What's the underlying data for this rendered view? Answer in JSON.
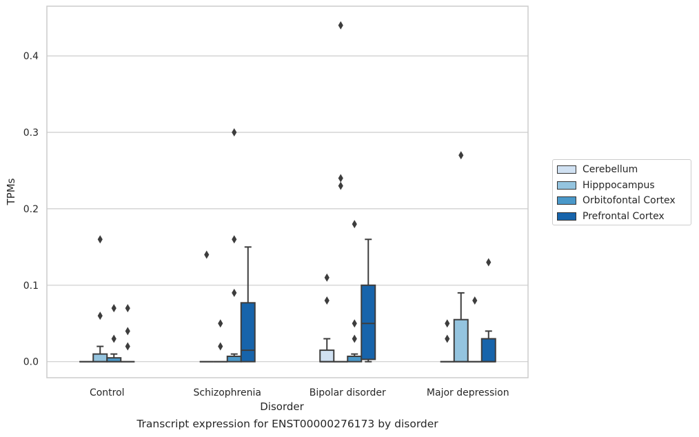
{
  "chart_data": {
    "type": "box",
    "xlabel": "Disorder",
    "ylabel": "TPMs",
    "ylim": [
      -0.021,
      0.465
    ],
    "yticks": [
      0.0,
      0.1,
      0.2,
      0.3,
      0.4
    ],
    "ytick_labels": [
      "0.0",
      "0.1",
      "0.2",
      "0.3",
      "0.4"
    ],
    "grid": "horizontal",
    "legend_position": "right-outside",
    "categories": [
      "Control",
      "Schizophrenia",
      "Bipolar disorder",
      "Major depression"
    ],
    "series": [
      {
        "name": "Cerebellum",
        "color": "#d0e1f2",
        "boxes": [
          {
            "min": 0,
            "q1": 0,
            "median": 0,
            "q3": 0,
            "max": 0,
            "outliers": []
          },
          {
            "min": 0,
            "q1": 0,
            "median": 0,
            "q3": 0,
            "max": 0,
            "outliers": [
              0.14
            ]
          },
          {
            "min": 0,
            "q1": 0,
            "median": 0,
            "q3": 0.015,
            "max": 0.03,
            "outliers": [
              0.08,
              0.11
            ]
          },
          {
            "min": 0,
            "q1": 0,
            "median": 0,
            "q3": 0,
            "max": 0,
            "outliers": [
              0.03,
              0.05
            ]
          }
        ]
      },
      {
        "name": "Hipppocampus",
        "color": "#94c4df",
        "boxes": [
          {
            "min": 0,
            "q1": 0,
            "median": 0,
            "q3": 0.01,
            "max": 0.02,
            "outliers": [
              0.06,
              0.16
            ]
          },
          {
            "min": 0,
            "q1": 0,
            "median": 0,
            "q3": 0,
            "max": 0,
            "outliers": [
              0.02,
              0.05
            ]
          },
          {
            "min": 0,
            "q1": 0,
            "median": 0,
            "q3": 0,
            "max": 0,
            "outliers": [
              0.23,
              0.24,
              0.44
            ]
          },
          {
            "min": 0,
            "q1": 0,
            "median": 0,
            "q3": 0.055,
            "max": 0.09,
            "outliers": [
              0.27
            ]
          }
        ]
      },
      {
        "name": "Orbitofontal Cortex",
        "color": "#4a98c9",
        "boxes": [
          {
            "min": 0,
            "q1": 0,
            "median": 0,
            "q3": 0.005,
            "max": 0.01,
            "outliers": [
              0.03,
              0.07
            ]
          },
          {
            "min": 0,
            "q1": 0,
            "median": 0.007,
            "q3": 0.007,
            "max": 0.01,
            "outliers": [
              0.09,
              0.16,
              0.3
            ]
          },
          {
            "min": 0,
            "q1": 0,
            "median": 0.007,
            "q3": 0.007,
            "max": 0.01,
            "outliers": [
              0.03,
              0.05,
              0.18
            ]
          },
          {
            "min": 0,
            "q1": 0,
            "median": 0,
            "q3": 0,
            "max": 0,
            "outliers": [
              0.08
            ]
          }
        ]
      },
      {
        "name": "Prefrontal Cortex",
        "color": "#1764ab",
        "boxes": [
          {
            "min": 0,
            "q1": 0,
            "median": 0,
            "q3": 0,
            "max": 0,
            "outliers": [
              0.02,
              0.04,
              0.07
            ]
          },
          {
            "min": 0,
            "q1": 0,
            "median": 0.015,
            "q3": 0.077,
            "max": 0.15,
            "outliers": []
          },
          {
            "min": 0,
            "q1": 0.003,
            "median": 0.05,
            "q3": 0.1,
            "max": 0.16,
            "outliers": []
          },
          {
            "min": 0,
            "q1": 0,
            "median": 0,
            "q3": 0.03,
            "max": 0.04,
            "outliers": [
              0.13
            ]
          }
        ]
      }
    ],
    "caption": "Transcript expression for ENST00000276173 by disorder"
  }
}
